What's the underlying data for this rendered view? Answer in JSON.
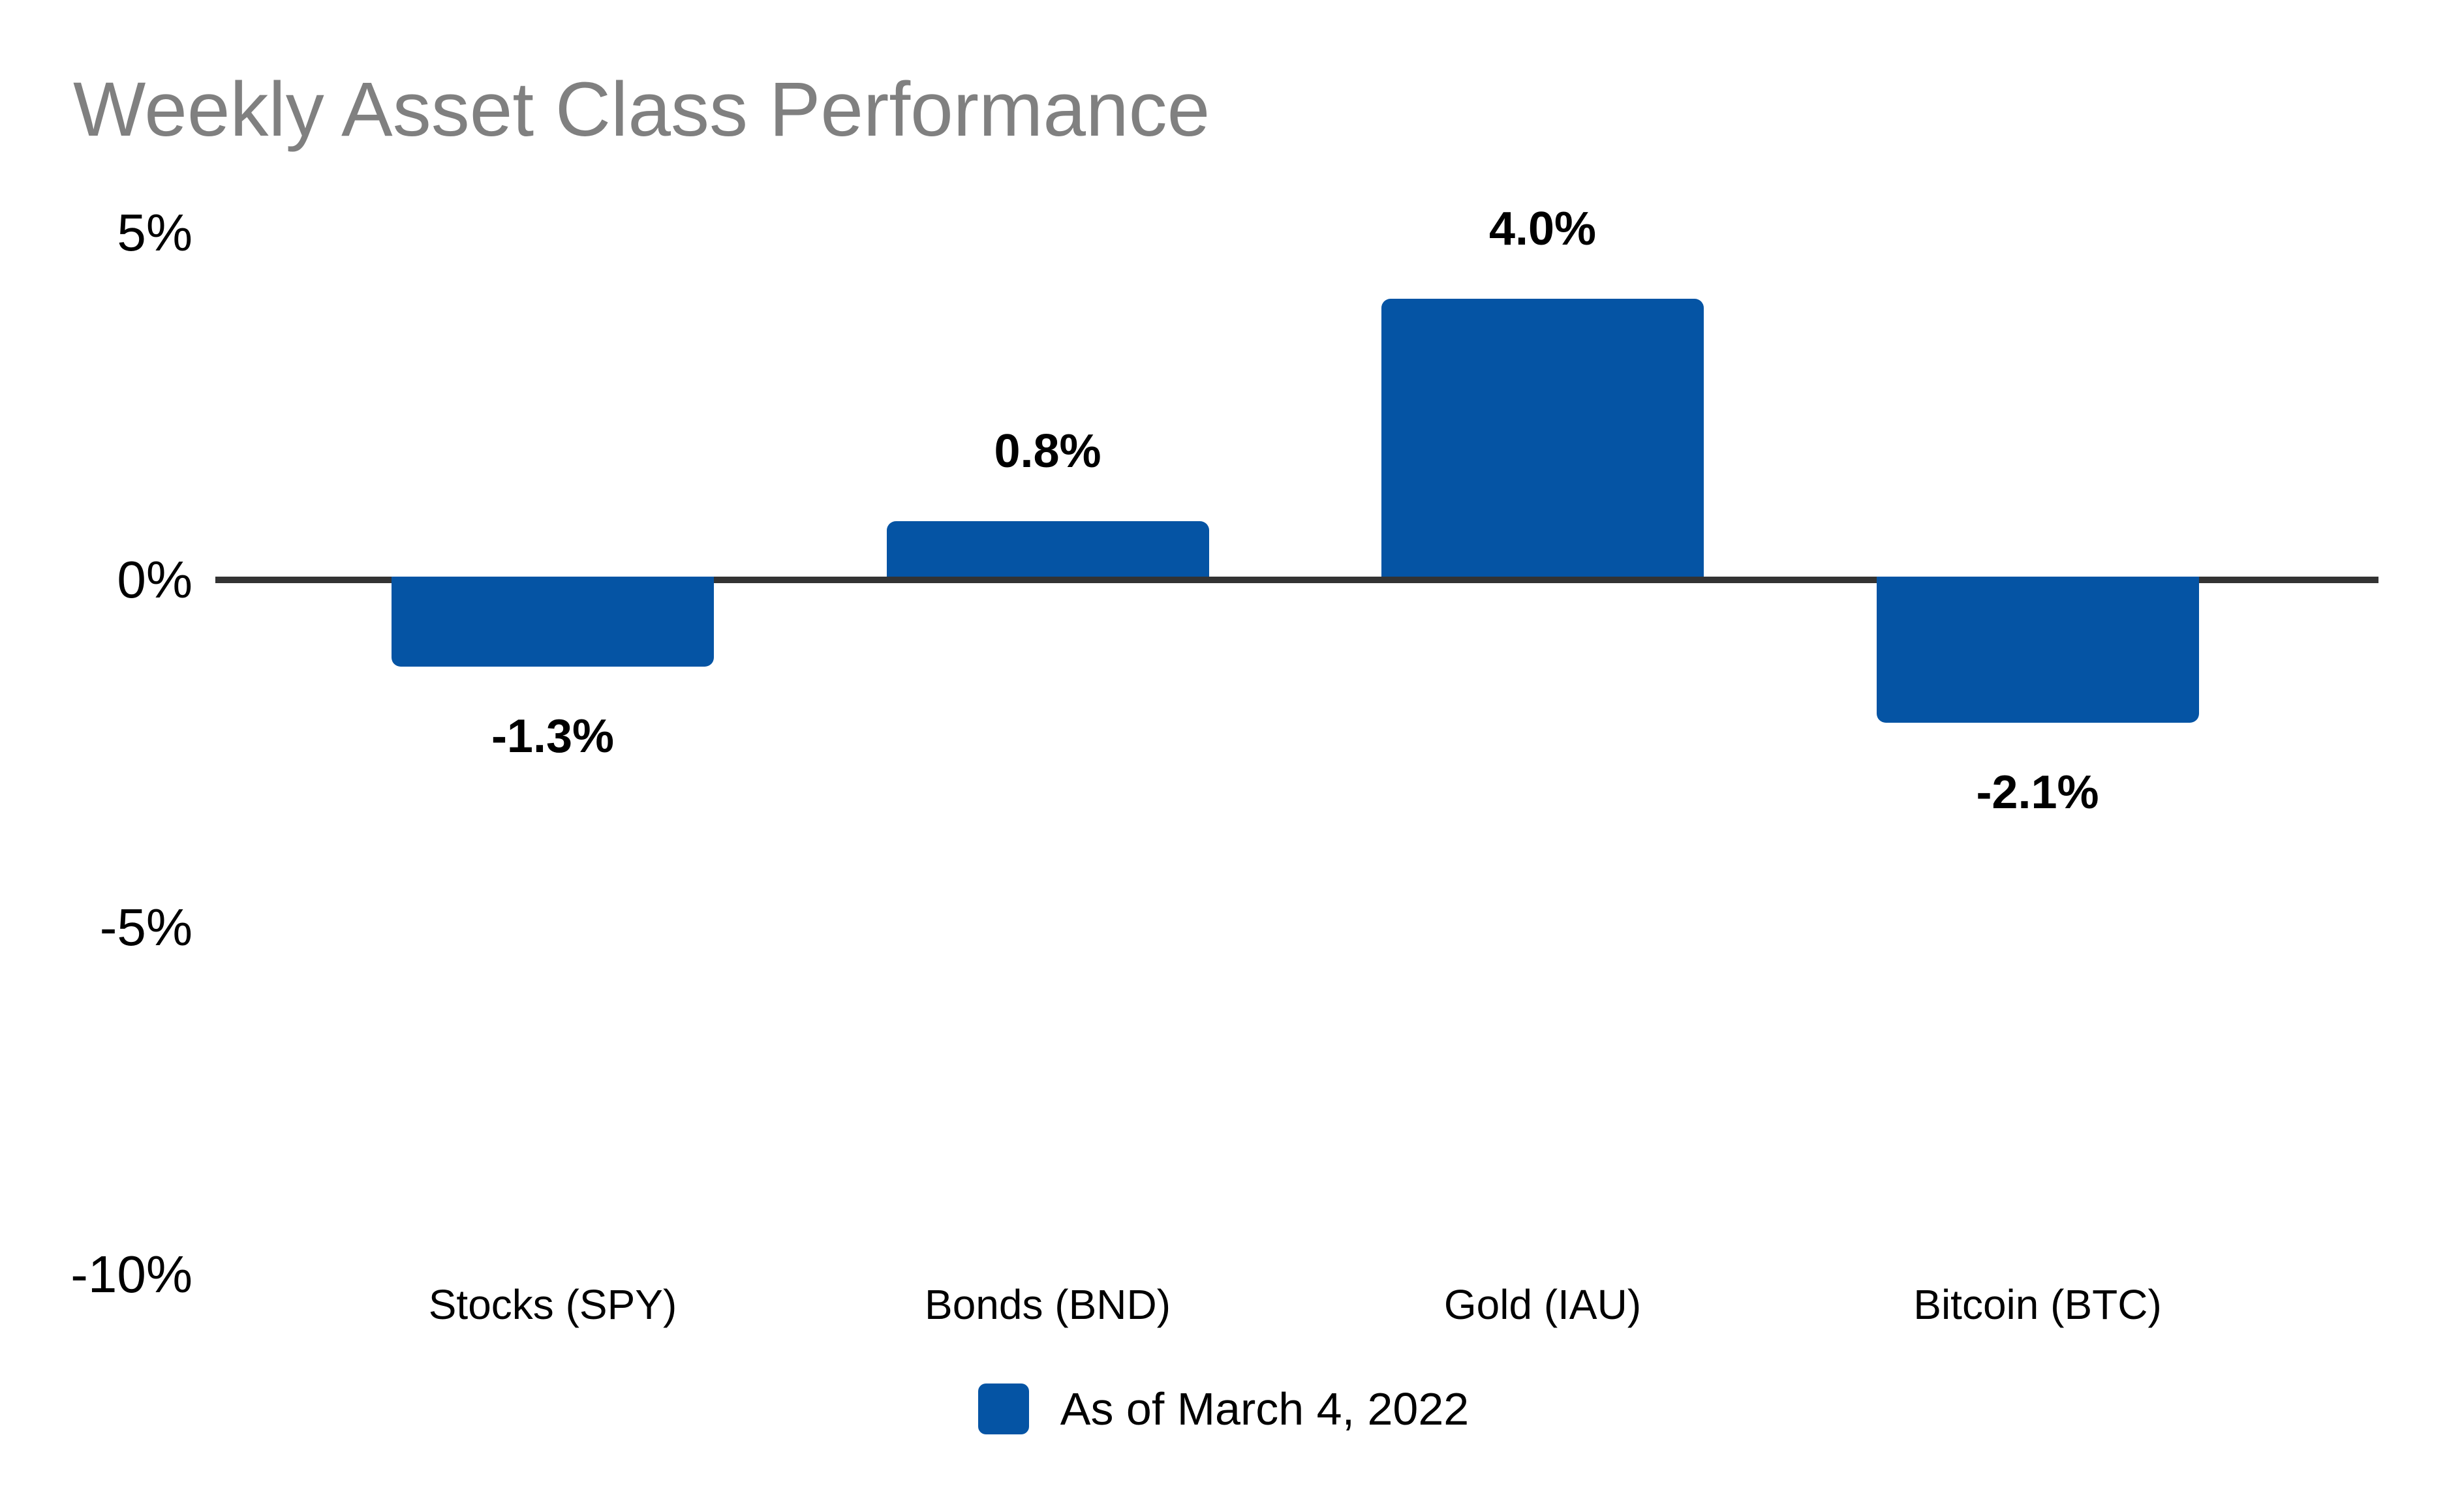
{
  "chart_data": {
    "type": "bar",
    "title": "Weekly Asset Class Performance",
    "categories": [
      "Stocks (SPY)",
      "Bonds (BND)",
      "Gold (IAU)",
      "Bitcoin (BTC)"
    ],
    "values": [
      -1.3,
      0.8,
      4.0,
      -2.1
    ],
    "value_labels": [
      "-1.3%",
      "0.8%",
      "4.0%",
      "-2.1%"
    ],
    "y_ticks": [
      {
        "value": 5,
        "label": "5%"
      },
      {
        "value": 0,
        "label": "0%"
      },
      {
        "value": -5,
        "label": "-5%"
      },
      {
        "value": -10,
        "label": "-10%"
      }
    ],
    "ylim": [
      -10,
      5
    ],
    "grid": false,
    "xlabel": "",
    "ylabel": "",
    "bar_color": "#0554A4",
    "axis_line_color": "#333333",
    "title_color": "#808080",
    "text_color": "#000000",
    "legend": {
      "position": "bottom",
      "entries": [
        {
          "label": "As of March 4, 2022",
          "color": "#0554A4"
        }
      ]
    }
  }
}
